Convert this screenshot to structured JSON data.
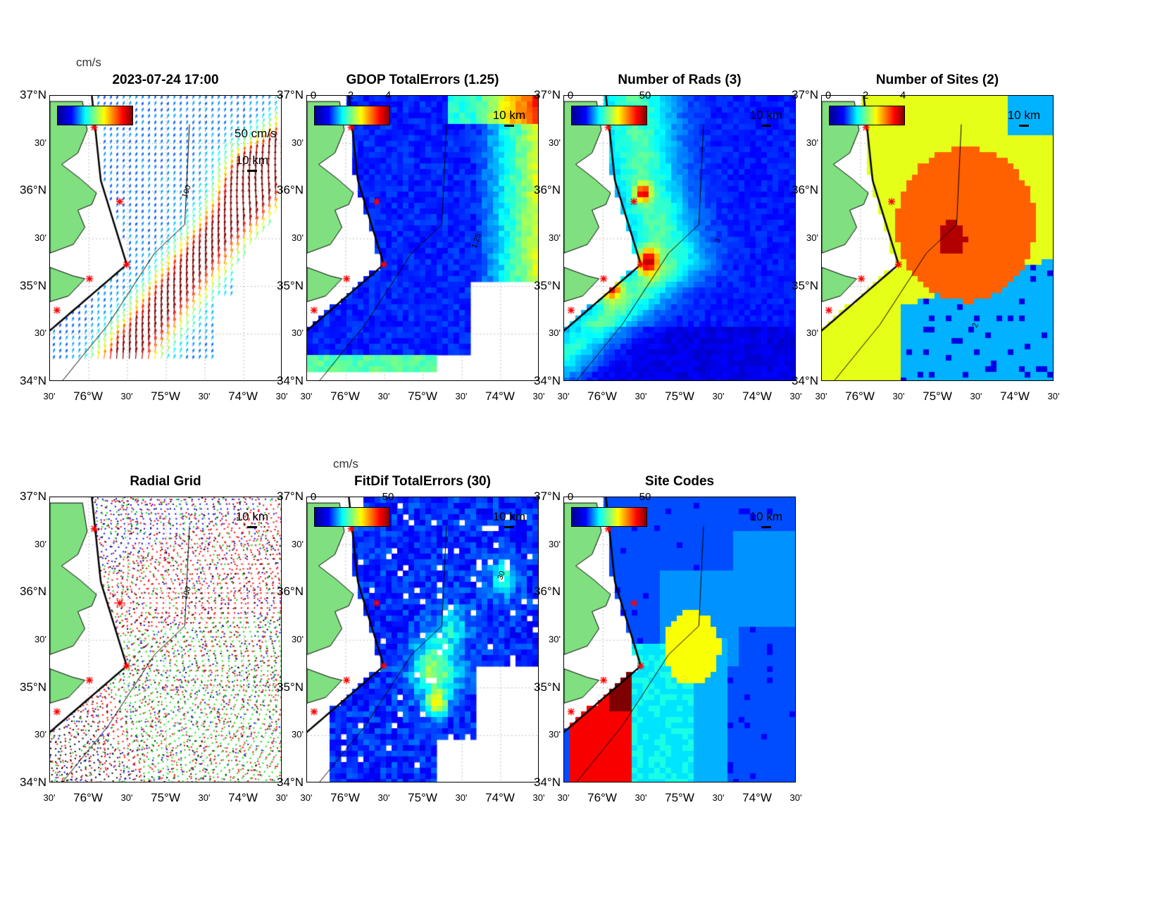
{
  "chart_data": [
    {
      "type": "heatmap",
      "title": "2023-07-24 17:00",
      "colorbar_unit": "cm/s",
      "vector_scale_label": "50 cm/s",
      "scale_bar": "10 km",
      "isobath_label": "100"
    },
    {
      "type": "heatmap",
      "title": "GDOP TotalErrors (1.25)",
      "colorbar_ticks": [
        "0",
        "2",
        "4"
      ],
      "scale_bar": "10 km",
      "contour_label": "1.25"
    },
    {
      "type": "heatmap",
      "title": "Number of Rads (3)",
      "colorbar_ticks": [
        "0",
        "50"
      ],
      "scale_bar": "10 km",
      "contour_label": "3"
    },
    {
      "type": "heatmap",
      "title": "Number of Sites (2)",
      "colorbar_ticks": [
        "0",
        "2",
        "4"
      ],
      "scale_bar": "10 km",
      "contour_label": "2"
    },
    {
      "type": "scatter",
      "title": "Radial Grid",
      "scale_bar": "10 km",
      "isobath_label": "100"
    },
    {
      "type": "heatmap",
      "title": "FitDif TotalErrors (30)",
      "colorbar_unit": "cm/s",
      "colorbar_ticks": [
        "0",
        "50"
      ],
      "scale_bar": "10 km",
      "contour_label": "30"
    },
    {
      "type": "heatmap",
      "title": "Site Codes",
      "colorbar_ticks": [
        "0",
        "50"
      ],
      "scale_bar": "10 km"
    }
  ],
  "axes": {
    "lat_ticks": [
      "37°N",
      "30'",
      "36°N",
      "30'",
      "35°N",
      "30'",
      "34°N"
    ],
    "lon_ticks": [
      "30'",
      "76°W",
      "30'",
      "75°W",
      "30'",
      "74°W",
      "30'"
    ],
    "ylim": [
      34,
      37
    ],
    "xlim": [
      -76.5,
      -73.5
    ]
  },
  "colors": {
    "land": "#80e080",
    "site_marker": "#ff0000"
  }
}
